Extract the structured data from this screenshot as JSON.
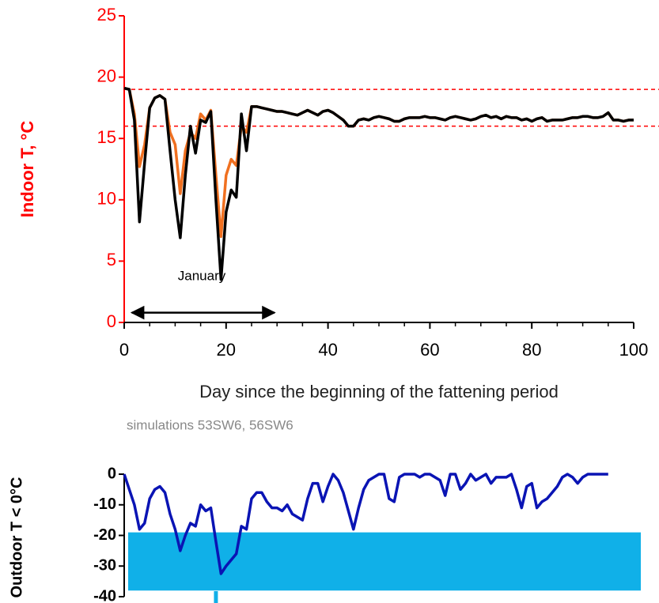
{
  "chart_data": [
    {
      "type": "line",
      "ylabel": "Indoor T, °C",
      "xlabel": "Day since the beginning of the fattening period",
      "subtitle": "simulations 53SW6, 56SW6",
      "annotation": "January",
      "arrow_x": [
        1.5,
        29.5
      ],
      "arrow_y": 0.8,
      "hlines": [
        19,
        16
      ],
      "hline_color": "#ff0000",
      "axis_color": "#ff0000",
      "xlim": [
        0,
        100
      ],
      "ylim": [
        0,
        25
      ],
      "xticks": [
        0,
        20,
        40,
        60,
        80,
        100
      ],
      "yticks": [
        0,
        5,
        10,
        15,
        20,
        25
      ],
      "x": [
        0,
        1,
        2,
        3,
        4,
        5,
        6,
        7,
        8,
        9,
        10,
        11,
        12,
        13,
        14,
        15,
        16,
        17,
        18,
        19,
        20,
        21,
        22,
        23,
        24,
        25,
        26,
        27,
        28,
        29,
        30,
        31,
        32,
        33,
        34,
        35,
        36,
        37,
        38,
        39,
        40,
        41,
        42,
        43,
        44,
        45,
        46,
        47,
        48,
        49,
        50,
        51,
        52,
        53,
        54,
        55,
        56,
        57,
        58,
        59,
        60,
        61,
        62,
        63,
        64,
        65,
        66,
        67,
        68,
        69,
        70,
        71,
        72,
        73,
        74,
        75,
        76,
        77,
        78,
        79,
        80,
        81,
        82,
        83,
        84,
        85,
        86,
        87,
        88,
        89,
        90,
        91,
        92,
        93,
        94,
        95,
        96,
        97,
        98,
        99,
        100
      ],
      "series": [
        {
          "color": "#f07020",
          "values": [
            19.1,
            19.0,
            17,
            12.7,
            14.5,
            17.5,
            18.3,
            18.5,
            18.2,
            15.5,
            14.5,
            10.5,
            14,
            15.5,
            15,
            17,
            16.5,
            17.3,
            12,
            7,
            12,
            13.3,
            12.8,
            16,
            15.5,
            17.6,
            17.6,
            17.5,
            17.4,
            17.3,
            17.2,
            17.2,
            17.1,
            17.0,
            16.9,
            17.1,
            17.3,
            17.1,
            16.9,
            17.2,
            17.3,
            17.1,
            16.8,
            16.5,
            16.0,
            16.0,
            16.5,
            16.6,
            16.5,
            16.7,
            16.8,
            16.7,
            16.6,
            16.4,
            16.4,
            16.6,
            16.7,
            16.7,
            16.7,
            16.8,
            16.7,
            16.7,
            16.6,
            16.5,
            16.7,
            16.8,
            16.7,
            16.6,
            16.5,
            16.6,
            16.8,
            16.9,
            16.7,
            16.8,
            16.6,
            16.8,
            16.7,
            16.7,
            16.5,
            16.6,
            16.4,
            16.6,
            16.7,
            16.4,
            16.5,
            16.5,
            16.5,
            16.6,
            16.7,
            16.7,
            16.8,
            16.8,
            16.7,
            16.7,
            16.8,
            17.1,
            16.5,
            16.5,
            16.4,
            16.5,
            16.5
          ]
        },
        {
          "color": "#000000",
          "values": [
            19.1,
            19.0,
            16.5,
            8.2,
            13,
            17.5,
            18.3,
            18.5,
            18.2,
            14,
            10,
            6.9,
            12,
            16,
            13.8,
            16.5,
            16.3,
            17.2,
            10,
            3.5,
            9,
            10.8,
            10.2,
            17,
            14,
            17.6,
            17.6,
            17.5,
            17.4,
            17.3,
            17.2,
            17.2,
            17.1,
            17.0,
            16.9,
            17.1,
            17.3,
            17.1,
            16.9,
            17.2,
            17.3,
            17.1,
            16.8,
            16.5,
            16.0,
            16.0,
            16.5,
            16.6,
            16.5,
            16.7,
            16.8,
            16.7,
            16.6,
            16.4,
            16.4,
            16.6,
            16.7,
            16.7,
            16.7,
            16.8,
            16.7,
            16.7,
            16.6,
            16.5,
            16.7,
            16.8,
            16.7,
            16.6,
            16.5,
            16.6,
            16.8,
            16.9,
            16.7,
            16.8,
            16.6,
            16.8,
            16.7,
            16.7,
            16.5,
            16.6,
            16.4,
            16.6,
            16.7,
            16.4,
            16.5,
            16.5,
            16.5,
            16.6,
            16.7,
            16.7,
            16.8,
            16.8,
            16.7,
            16.7,
            16.8,
            17.1,
            16.5,
            16.5,
            16.4,
            16.5,
            16.5
          ]
        }
      ]
    },
    {
      "type": "line",
      "ylabel": "Outdoor T < 0°C",
      "xlim": [
        0,
        100
      ],
      "ylim": [
        -40,
        0
      ],
      "yticks": [
        -40,
        -30,
        -20,
        -10,
        0
      ],
      "band_y": [
        -38,
        -19
      ],
      "band_color": "#10b0e8",
      "marker_x": 18,
      "axis_color": "#000000",
      "x": [
        0,
        1,
        2,
        3,
        4,
        5,
        6,
        7,
        8,
        9,
        10,
        11,
        12,
        13,
        14,
        15,
        16,
        17,
        18,
        19,
        20,
        21,
        22,
        23,
        24,
        25,
        26,
        27,
        28,
        29,
        30,
        31,
        32,
        33,
        34,
        35,
        36,
        37,
        38,
        39,
        40,
        41,
        42,
        43,
        44,
        45,
        46,
        47,
        48,
        49,
        50,
        51,
        52,
        53,
        54,
        55,
        56,
        57,
        58,
        59,
        60,
        61,
        62,
        63,
        64,
        65,
        66,
        67,
        68,
        69,
        70,
        71,
        72,
        73,
        74,
        75,
        76,
        77,
        78,
        79,
        80,
        81,
        82,
        83,
        84,
        85,
        86,
        87,
        88,
        89,
        90,
        91,
        92,
        93,
        94,
        95
      ],
      "series": [
        {
          "color": "#0a14b4",
          "values": [
            0,
            -5,
            -10,
            -18,
            -16,
            -8,
            -5,
            -4,
            -6,
            -13,
            -18,
            -25,
            -20,
            -16,
            -17,
            -10,
            -12,
            -11,
            -22,
            -32.5,
            -30,
            -28,
            -26,
            -17,
            -18,
            -8,
            -6,
            -6,
            -9,
            -11,
            -11,
            -12,
            -10,
            -13,
            -14,
            -15,
            -8,
            -3,
            -3,
            -9,
            -4,
            0,
            -2,
            -6,
            -12,
            -18,
            -11,
            -5,
            -2,
            -1,
            0,
            0,
            -8,
            -9,
            -1,
            0,
            0,
            0,
            -1,
            0,
            0,
            -1,
            -2,
            -7,
            0,
            0,
            -5,
            -3,
            0,
            -2,
            -1,
            0,
            -3,
            -1,
            -1,
            -1,
            0,
            -5,
            -11,
            -4,
            -3,
            -11,
            -9,
            -8,
            -6,
            -4,
            -1,
            0,
            -1,
            -3,
            -1,
            0,
            0,
            0,
            0,
            0
          ]
        }
      ]
    }
  ]
}
